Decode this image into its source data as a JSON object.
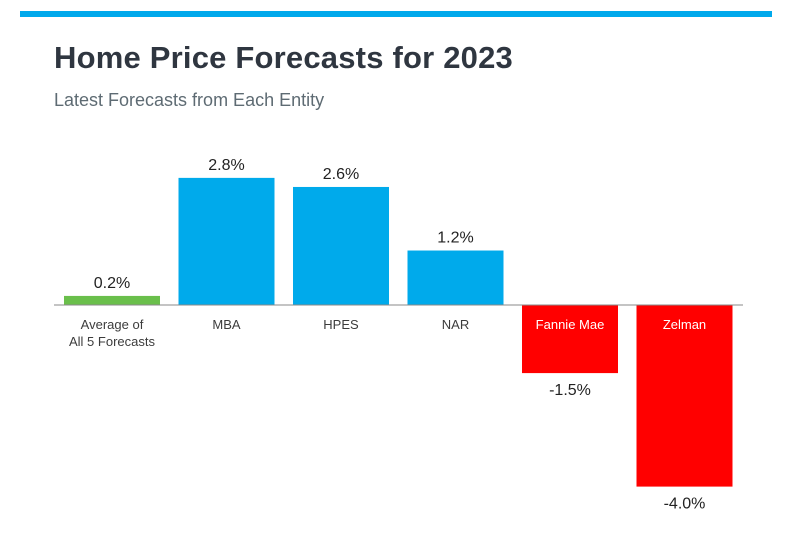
{
  "header": {
    "title": "Home Price Forecasts for 2023",
    "subtitle": "Latest Forecasts from Each Entity"
  },
  "colors": {
    "accent": "#00a9ec",
    "positive": "#00aaeb",
    "negative": "#ff0000",
    "average": "#6abf4b"
  },
  "chart_data": {
    "type": "bar",
    "title": "Home Price Forecasts for 2023",
    "subtitle": "Latest Forecasts from Each Entity",
    "xlabel": "",
    "ylabel": "",
    "ylim": [
      -4.0,
      2.8
    ],
    "grid": false,
    "legend": "none",
    "categories": [
      [
        "Average of",
        "All 5 Forecasts"
      ],
      [
        "MBA"
      ],
      [
        "HPES"
      ],
      [
        "NAR"
      ],
      [
        "Fannie Mae"
      ],
      [
        "Zelman"
      ]
    ],
    "values": [
      0.2,
      2.8,
      2.6,
      1.2,
      -1.5,
      -4.0
    ],
    "value_labels": [
      "0.2%",
      "2.8%",
      "2.6%",
      "1.2%",
      "-1.5%",
      "-4.0%"
    ],
    "bar_colors": [
      "#6abf4b",
      "#00aaeb",
      "#00aaeb",
      "#00aaeb",
      "#ff0000",
      "#ff0000"
    ]
  }
}
